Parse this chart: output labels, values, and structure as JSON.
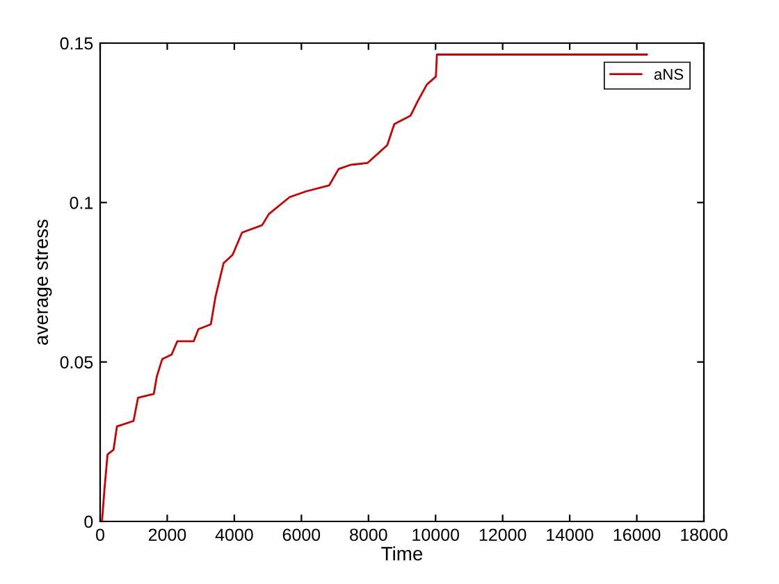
{
  "chart_data": {
    "type": "line",
    "xlabel": "Time",
    "ylabel": "average stress",
    "series": [
      {
        "name": "aNS",
        "color": "#cc0000",
        "x": [
          55,
          125,
          220,
          400,
          500,
          995,
          1130,
          1600,
          1690,
          1850,
          2130,
          2300,
          2790,
          2930,
          3300,
          3440,
          3680,
          3950,
          4230,
          4830,
          5030,
          5650,
          6140,
          6830,
          7110,
          7460,
          7970,
          8560,
          8770,
          9250,
          9460,
          9740,
          10010,
          10040,
          16300
        ],
        "values": [
          0,
          0.0096,
          0.021,
          0.0225,
          0.0298,
          0.0315,
          0.0388,
          0.04,
          0.0455,
          0.0509,
          0.0523,
          0.0565,
          0.0565,
          0.0603,
          0.0618,
          0.0705,
          0.081,
          0.0836,
          0.0906,
          0.0929,
          0.0964,
          0.1017,
          0.1035,
          0.1054,
          0.1105,
          0.1118,
          0.1124,
          0.118,
          0.1246,
          0.1272,
          0.1316,
          0.137,
          0.1395,
          0.1464,
          0.1464
        ]
      }
    ],
    "xlim": [
      0,
      18000
    ],
    "xticks": [
      0,
      2000,
      4000,
      6000,
      8000,
      10000,
      12000,
      14000,
      16000,
      18000
    ],
    "ylim": [
      0,
      0.15
    ],
    "yticks": [
      0,
      0.05,
      0.1,
      0.15
    ],
    "grid": false,
    "legend": "top right",
    "marker": "none",
    "line_style": "solid"
  }
}
